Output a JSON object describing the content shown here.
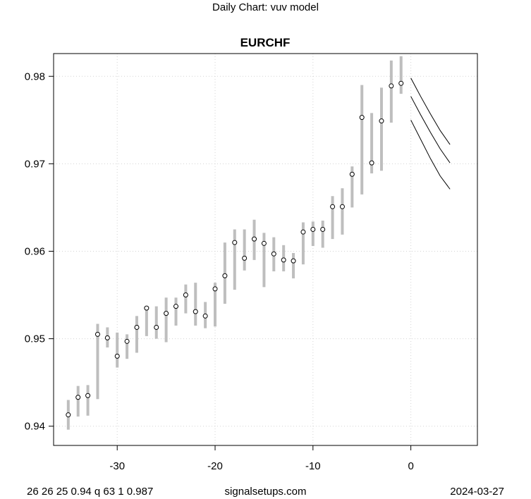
{
  "page": {
    "title": "Daily Chart: vuv model"
  },
  "footer": {
    "left": "26 26 25 0.94 q 63 1 0.987",
    "center": "signalsetups.com",
    "right": "2024-03-27"
  },
  "chart_data": {
    "type": "scatter",
    "title": "EURCHF",
    "xlabel": "",
    "ylabel": "",
    "xlim": [
      -36.5,
      6.8
    ],
    "ylim": [
      0.9378,
      0.9826
    ],
    "x_ticks": [
      -30,
      -20,
      -10,
      0
    ],
    "y_ticks": [
      0.94,
      0.95,
      0.96,
      0.97,
      0.98
    ],
    "x_tick_labels": [
      "-30",
      "-20",
      "-10",
      "0"
    ],
    "y_tick_labels": [
      "0.94",
      "0.95",
      "0.96",
      "0.97",
      "0.98"
    ],
    "grid": true,
    "colors": {
      "range_bar": "#bebebe",
      "point": "#000000",
      "forecast": "#000000",
      "grid": "#d3d3d3"
    },
    "points": [
      {
        "x": -35,
        "y": 0.9413,
        "low": 0.9396,
        "high": 0.943
      },
      {
        "x": -34,
        "y": 0.9433,
        "low": 0.9411,
        "high": 0.9446
      },
      {
        "x": -33,
        "y": 0.9435,
        "low": 0.9412,
        "high": 0.9447
      },
      {
        "x": -32,
        "y": 0.9505,
        "low": 0.9431,
        "high": 0.9517
      },
      {
        "x": -31,
        "y": 0.9501,
        "low": 0.949,
        "high": 0.9513
      },
      {
        "x": -30,
        "y": 0.948,
        "low": 0.9467,
        "high": 0.9507
      },
      {
        "x": -29,
        "y": 0.9497,
        "low": 0.9477,
        "high": 0.9505
      },
      {
        "x": -28,
        "y": 0.9513,
        "low": 0.9484,
        "high": 0.9526
      },
      {
        "x": -27,
        "y": 0.9535,
        "low": 0.9503,
        "high": 0.9537
      },
      {
        "x": -26,
        "y": 0.9513,
        "low": 0.95,
        "high": 0.9537
      },
      {
        "x": -25,
        "y": 0.9529,
        "low": 0.9496,
        "high": 0.9547
      },
      {
        "x": -24,
        "y": 0.9537,
        "low": 0.9515,
        "high": 0.9547
      },
      {
        "x": -23,
        "y": 0.955,
        "low": 0.9529,
        "high": 0.9562
      },
      {
        "x": -22,
        "y": 0.9531,
        "low": 0.9515,
        "high": 0.9564
      },
      {
        "x": -21,
        "y": 0.9526,
        "low": 0.9512,
        "high": 0.9542
      },
      {
        "x": -20,
        "y": 0.9557,
        "low": 0.9514,
        "high": 0.9564
      },
      {
        "x": -19,
        "y": 0.9572,
        "low": 0.954,
        "high": 0.961
      },
      {
        "x": -18,
        "y": 0.961,
        "low": 0.9556,
        "high": 0.9625
      },
      {
        "x": -17,
        "y": 0.9592,
        "low": 0.9578,
        "high": 0.9625
      },
      {
        "x": -16,
        "y": 0.9614,
        "low": 0.959,
        "high": 0.9636
      },
      {
        "x": -15,
        "y": 0.9609,
        "low": 0.9559,
        "high": 0.9621
      },
      {
        "x": -14,
        "y": 0.9597,
        "low": 0.9577,
        "high": 0.9616
      },
      {
        "x": -13,
        "y": 0.959,
        "low": 0.9577,
        "high": 0.9607
      },
      {
        "x": -12,
        "y": 0.9589,
        "low": 0.9569,
        "high": 0.9598
      },
      {
        "x": -11,
        "y": 0.9622,
        "low": 0.9585,
        "high": 0.9633
      },
      {
        "x": -10,
        "y": 0.9625,
        "low": 0.9606,
        "high": 0.9634
      },
      {
        "x": -9,
        "y": 0.9625,
        "low": 0.9604,
        "high": 0.9635
      },
      {
        "x": -8,
        "y": 0.9651,
        "low": 0.9614,
        "high": 0.9663
      },
      {
        "x": -7,
        "y": 0.9651,
        "low": 0.9619,
        "high": 0.9672
      },
      {
        "x": -6,
        "y": 0.9688,
        "low": 0.965,
        "high": 0.9697
      },
      {
        "x": -5,
        "y": 0.9753,
        "low": 0.9665,
        "high": 0.979
      },
      {
        "x": -4,
        "y": 0.9701,
        "low": 0.9689,
        "high": 0.9758
      },
      {
        "x": -3,
        "y": 0.9749,
        "low": 0.9692,
        "high": 0.9787
      },
      {
        "x": -2,
        "y": 0.9789,
        "low": 0.9747,
        "high": 0.9818
      },
      {
        "x": -1,
        "y": 0.9792,
        "low": 0.978,
        "high": 0.9823
      }
    ],
    "forecast": [
      {
        "name": "upper",
        "x": [
          0,
          1,
          2,
          3,
          4
        ],
        "y": [
          0.9798,
          0.9777,
          0.9757,
          0.9738,
          0.9722
        ]
      },
      {
        "name": "middle",
        "x": [
          0,
          1,
          2,
          3,
          4
        ],
        "y": [
          0.9777,
          0.9756,
          0.9736,
          0.9717,
          0.9701
        ]
      },
      {
        "name": "lower",
        "x": [
          0,
          1,
          2,
          3,
          4
        ],
        "y": [
          0.975,
          0.9728,
          0.9706,
          0.9686,
          0.9671
        ]
      }
    ]
  }
}
